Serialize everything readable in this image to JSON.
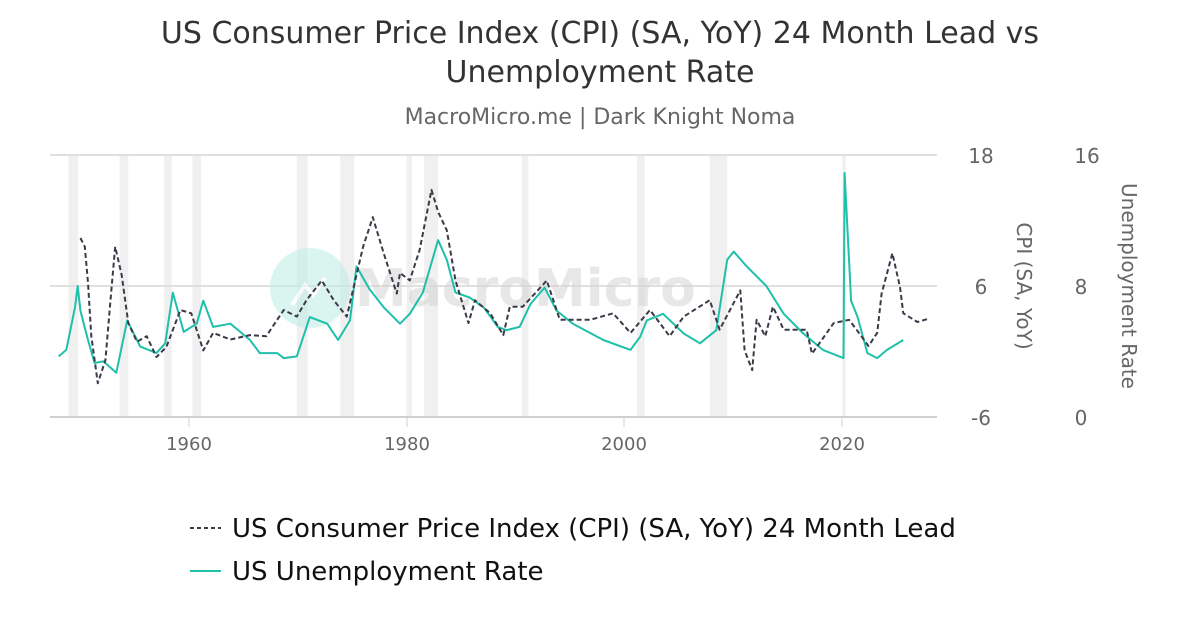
{
  "chart_data": {
    "type": "line",
    "title": "US Consumer Price Index (CPI) (SA, YoY) 24 Month Lead vs Unemployment Rate",
    "title_lines": [
      "US Consumer Price Index (CPI) (SA, YoY) 24 Month Lead vs",
      "Unemployment Rate"
    ],
    "subtitle": "MacroMicro.me | Dark Knight Noma",
    "watermark": "MacroMicro",
    "x_axis": {
      "ticks": [
        "1960",
        "1980",
        "2000",
        "2020"
      ],
      "range": [
        1947.2,
        2028.8
      ]
    },
    "y_left": {
      "label": "CPI (SA, YoY)",
      "ticks": [
        "18",
        "6",
        "-6"
      ],
      "range": [
        -6,
        18
      ]
    },
    "y_right": {
      "label": "Unemployment Rate",
      "ticks": [
        "16",
        "8",
        "0"
      ],
      "range": [
        0,
        16
      ]
    },
    "grid": true,
    "legend_position": "bottom",
    "recessions": [
      [
        1948.9,
        1949.8
      ],
      [
        1953.6,
        1954.4
      ],
      [
        1957.7,
        1958.4
      ],
      [
        1960.3,
        1961.1
      ],
      [
        1969.9,
        1970.9
      ],
      [
        1973.9,
        1975.2
      ],
      [
        1980.0,
        1980.5
      ],
      [
        1981.6,
        1982.9
      ],
      [
        1990.6,
        1991.2
      ],
      [
        2001.2,
        2001.9
      ],
      [
        2007.9,
        2009.5
      ],
      [
        2020.1,
        2020.4
      ]
    ],
    "series": [
      {
        "name": "US Consumer Price Index (CPI) (SA, YoY) 24 Month Lead",
        "axis": "left",
        "color": "#3a3a48",
        "style": "dashed",
        "x": [
          1950.0,
          1950.4,
          1950.7,
          1951.0,
          1951.6,
          1952.3,
          1952.9,
          1953.2,
          1953.8,
          1954.4,
          1955.2,
          1956.1,
          1957.0,
          1957.9,
          1959.2,
          1960.2,
          1961.3,
          1962.2,
          1963.8,
          1965.6,
          1967.1,
          1968.7,
          1969.9,
          1970.8,
          1972.2,
          1973.3,
          1974.5,
          1976.0,
          1976.9,
          1977.9,
          1979.1,
          1979.4,
          1980.3,
          1981.2,
          1982.3,
          1982.9,
          1983.7,
          1984.5,
          1985.7,
          1986.3,
          1987.7,
          1988.9,
          1989.5,
          1990.7,
          1992.9,
          1994.1,
          1996.9,
          1999.0,
          2000.6,
          2002.4,
          2004.2,
          2005.5,
          2007.9,
          2008.8,
          2010.7,
          2011.1,
          2011.8,
          2012.2,
          2013.0,
          2013.7,
          2014.7,
          2016.8,
          2017.3,
          2019.3,
          2020.7,
          2021.4,
          2022.5,
          2023.3,
          2023.7,
          2024.7,
          2025.4,
          2025.7,
          2027.0,
          2028.0
        ],
        "y": [
          10.4,
          9.6,
          6.3,
          1.4,
          -2.9,
          -0.8,
          6.3,
          9.6,
          7.0,
          2.6,
          0.9,
          1.4,
          -0.5,
          0.4,
          3.8,
          3.5,
          0.1,
          1.7,
          1.1,
          1.5,
          1.4,
          3.8,
          3.2,
          4.7,
          6.5,
          4.7,
          3.2,
          9.6,
          12.3,
          9.0,
          5.3,
          7.2,
          6.5,
          9.3,
          14.8,
          12.8,
          11.1,
          6.5,
          2.6,
          4.7,
          3.5,
          1.5,
          4.1,
          4.1,
          6.5,
          2.9,
          2.9,
          3.5,
          1.7,
          3.8,
          1.4,
          3.2,
          4.7,
          2.0,
          5.6,
          0.1,
          -1.7,
          2.9,
          1.4,
          4.1,
          2.0,
          2.0,
          -0.2,
          2.6,
          2.9,
          2.0,
          0.5,
          1.7,
          5.3,
          9.0,
          5.9,
          3.5,
          2.7,
          3.0
        ]
      },
      {
        "name": "US Unemployment Rate",
        "axis": "right",
        "color": "#1fc0aa",
        "style": "solid",
        "x": [
          1948.0,
          1948.7,
          1949.5,
          1949.75,
          1950.0,
          1950.7,
          1951.3,
          1952.1,
          1953.3,
          1954.3,
          1955.5,
          1957.0,
          1957.8,
          1958.5,
          1959.5,
          1960.7,
          1961.3,
          1962.2,
          1963.8,
          1965.6,
          1966.5,
          1968.1,
          1968.7,
          1969.9,
          1971.1,
          1972.7,
          1973.7,
          1974.8,
          1975.4,
          1976.6,
          1977.9,
          1979.4,
          1980.3,
          1981.5,
          1982.9,
          1983.7,
          1984.5,
          1985.8,
          1987.1,
          1988.4,
          1989.2,
          1990.4,
          1991.4,
          1992.7,
          1993.8,
          1995.3,
          1998.1,
          2000.6,
          2001.5,
          2002.1,
          2003.6,
          2005.5,
          2007.0,
          2008.5,
          2009.5,
          2010.1,
          2011.3,
          2013.1,
          2014.7,
          2016.5,
          2018.3,
          2020.2,
          2020.3,
          2020.9,
          2021.5,
          2022.4,
          2023.3,
          2024.2,
          2025.7
        ],
        "y": [
          3.7,
          4.1,
          6.7,
          8.0,
          6.5,
          4.7,
          3.3,
          3.4,
          2.7,
          5.9,
          4.3,
          3.9,
          4.5,
          7.6,
          5.2,
          5.7,
          7.1,
          5.5,
          5.7,
          4.7,
          3.9,
          3.9,
          3.6,
          3.7,
          6.1,
          5.7,
          4.7,
          5.9,
          9.2,
          7.8,
          6.7,
          5.7,
          6.3,
          7.6,
          10.8,
          9.6,
          7.6,
          7.3,
          6.7,
          5.5,
          5.3,
          5.5,
          6.9,
          7.9,
          6.5,
          5.7,
          4.7,
          4.1,
          4.9,
          5.9,
          6.3,
          5.1,
          4.5,
          5.3,
          9.6,
          10.1,
          9.2,
          8.0,
          6.3,
          5.1,
          4.1,
          3.6,
          14.9,
          7.1,
          6.1,
          3.9,
          3.6,
          4.1,
          4.7
        ]
      }
    ]
  }
}
